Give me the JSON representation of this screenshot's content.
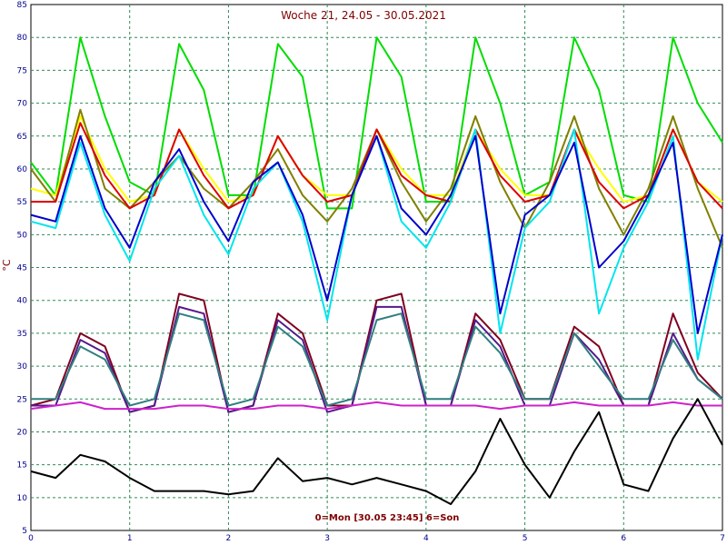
{
  "chart_data": {
    "type": "line",
    "title": "Woche 21, 24.05 - 30.05.2021",
    "footer": "0=Mon [30.05 23:45] 6=Son",
    "ylabel": "°C",
    "xlabel": "",
    "xlim": [
      0,
      7
    ],
    "ylim": [
      5,
      85
    ],
    "x_ticks": [
      "0",
      "1",
      "2",
      "3",
      "4",
      "5",
      "6",
      "7"
    ],
    "y_ticks": [
      "5",
      "10",
      "15",
      "20",
      "25",
      "30",
      "35",
      "40",
      "45",
      "50",
      "55",
      "60",
      "65",
      "70",
      "75",
      "80",
      "85"
    ],
    "grid": true,
    "x": [
      0,
      0.25,
      0.5,
      0.75,
      1,
      1.25,
      1.5,
      1.75,
      2,
      2.25,
      2.5,
      2.75,
      3,
      3.25,
      3.5,
      3.75,
      4,
      4.25,
      4.5,
      4.75,
      5,
      5.25,
      5.5,
      5.75,
      6,
      6.25,
      6.5,
      6.75,
      7
    ],
    "series": [
      {
        "color": "#00dd00",
        "values": [
          61,
          56,
          80,
          68,
          58,
          56,
          79,
          72,
          56,
          56,
          79,
          74,
          54,
          54,
          80,
          74,
          55,
          55,
          80,
          70,
          56,
          58,
          80,
          72,
          56,
          55,
          80,
          70,
          64
        ]
      },
      {
        "color": "#ffff00",
        "values": [
          57,
          56,
          68,
          60,
          55,
          56,
          66,
          60,
          55,
          56,
          65,
          59,
          56,
          56,
          66,
          60,
          56,
          56,
          66,
          60,
          56,
          56,
          66,
          60,
          55,
          56,
          66,
          58,
          55
        ]
      },
      {
        "color": "#808000",
        "values": [
          60,
          55,
          69,
          57,
          54,
          58,
          62,
          57,
          54,
          58,
          63,
          56,
          52,
          57,
          66,
          58,
          52,
          57,
          68,
          58,
          51,
          58,
          68,
          57,
          50,
          57,
          68,
          57,
          48
        ]
      },
      {
        "color": "#dd0000",
        "values": [
          55,
          55,
          67,
          59,
          54,
          56,
          66,
          59,
          54,
          56,
          65,
          59,
          55,
          56,
          66,
          59,
          56,
          55,
          66,
          59,
          55,
          56,
          66,
          58,
          54,
          56,
          66,
          58,
          54
        ]
      },
      {
        "color": "#00e5ee",
        "values": [
          52,
          51,
          64,
          53,
          46,
          57,
          62,
          53,
          47,
          57,
          61,
          52,
          37,
          56,
          65,
          52,
          48,
          55,
          66,
          35,
          51,
          55,
          66,
          38,
          48,
          55,
          65,
          31,
          50
        ]
      },
      {
        "color": "#0000cd",
        "values": [
          53,
          52,
          65,
          54,
          48,
          58,
          63,
          55,
          49,
          58,
          61,
          53,
          40,
          56,
          65,
          54,
          50,
          56,
          65,
          38,
          53,
          56,
          64,
          45,
          49,
          56,
          64,
          35,
          50
        ]
      },
      {
        "color": "#800020",
        "values": [
          24,
          25,
          35,
          33,
          23,
          24,
          41,
          40,
          23,
          24,
          38,
          35,
          24,
          24,
          40,
          41,
          24,
          24,
          38,
          34,
          25,
          25,
          36,
          33,
          24,
          24,
          38,
          29,
          25
        ]
      },
      {
        "color": "#551a8b",
        "values": [
          24,
          24,
          34,
          32,
          23,
          24,
          39,
          38,
          23,
          24,
          37,
          34,
          23,
          24,
          39,
          39,
          24,
          24,
          37,
          33,
          24,
          24,
          35,
          31,
          24,
          24,
          35,
          28,
          25
        ]
      },
      {
        "color": "#2f7f7f",
        "values": [
          25,
          25,
          33,
          31,
          24,
          25,
          38,
          37,
          24,
          25,
          36,
          33,
          24,
          25,
          37,
          38,
          25,
          25,
          36,
          32,
          25,
          25,
          35,
          30,
          25,
          25,
          34,
          28,
          25
        ]
      },
      {
        "color": "#cc22cc",
        "values": [
          23.5,
          24,
          24.5,
          23.5,
          23.5,
          23.5,
          24,
          24,
          23.5,
          23.5,
          24,
          24,
          23.5,
          24,
          24.5,
          24,
          24,
          24,
          24,
          23.5,
          24,
          24,
          24.5,
          24,
          24,
          24,
          24.5,
          24,
          24
        ]
      },
      {
        "color": "#000000",
        "values": [
          14,
          13,
          16.5,
          15.5,
          13,
          11,
          11,
          11,
          10.5,
          11,
          16,
          12.5,
          13,
          12,
          13,
          12,
          11,
          9,
          14,
          22,
          15,
          10,
          17,
          23,
          12,
          11,
          19,
          25,
          18
        ]
      }
    ]
  }
}
